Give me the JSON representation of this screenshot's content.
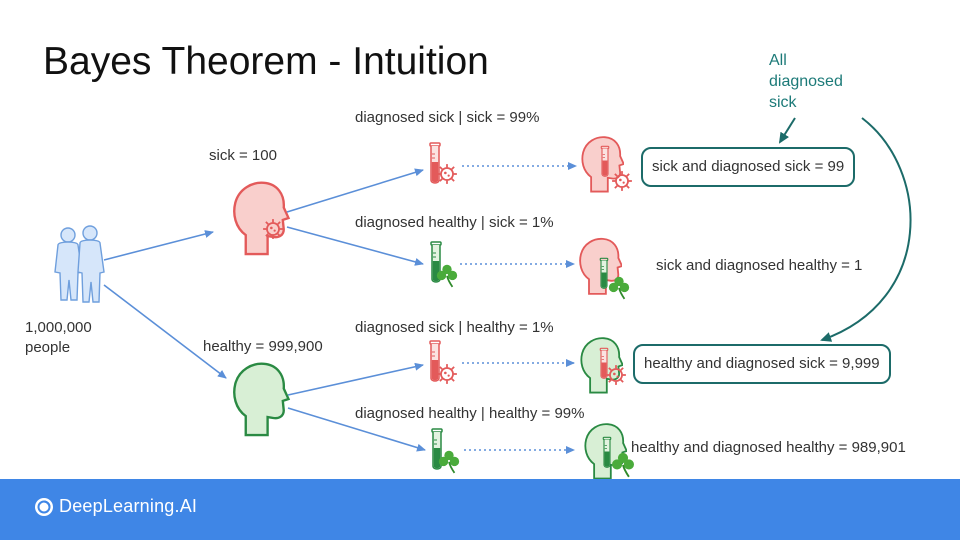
{
  "title": "Bayes Theorem - Intuition",
  "population": {
    "line1": "1,000,000",
    "line2": "people"
  },
  "groups": {
    "sick": "sick = 100",
    "healthy": "healthy = 999,900"
  },
  "conditionals": {
    "sick_diag_sick": "diagnosed sick | sick = 99%",
    "sick_diag_healthy": "diagnosed healthy | sick = 1%",
    "healthy_diag_sick": "diagnosed sick | healthy = 1%",
    "healthy_diag_healthy": "diagnosed healthy | healthy = 99%"
  },
  "outcomes": {
    "sick_and_diag_sick": "sick and diagnosed sick = 99",
    "sick_and_diag_healthy": "sick and diagnosed healthy = 1",
    "healthy_and_diag_sick": "healthy and diagnosed sick = 9,999",
    "healthy_and_diag_healthy": "healthy and diagnosed healthy = 989,901"
  },
  "annotation": {
    "line1": "All",
    "line2": "diagnosed",
    "line3": "sick"
  },
  "brand": {
    "name": "DeepLearning.AI"
  },
  "colors": {
    "arrow_blue": "#5b8fd8",
    "sick_red": "#e35a5a",
    "sick_fill": "#f9cfcc",
    "healthy_green": "#2a8a43",
    "healthy_fill": "#d8efd5",
    "teal": "#1c6b69",
    "footer_blue": "#3f86e6"
  }
}
